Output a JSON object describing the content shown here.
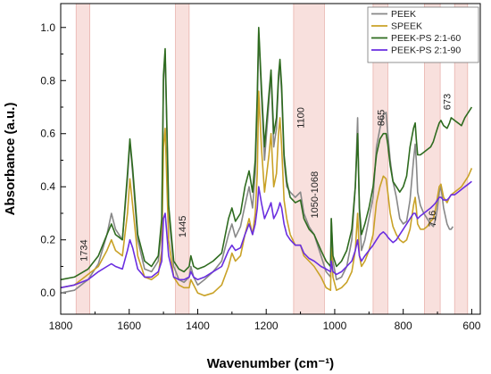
{
  "chart_data": {
    "type": "line",
    "xlabel": "Wavenumber (cm⁻¹)",
    "ylabel": "Absorbance (a.u.)",
    "xlim": [
      1800,
      575
    ],
    "ylim": [
      -0.08,
      1.09
    ],
    "x_ticks": [
      "1800",
      "1600",
      "1400",
      "1200",
      "1000",
      "800",
      "600"
    ],
    "x_tick_values": [
      1800,
      1600,
      1400,
      1200,
      1000,
      800,
      600
    ],
    "y_ticks": [
      "0.0",
      "0.2",
      "0.4",
      "0.6",
      "0.8",
      "1.0"
    ],
    "y_tick_values": [
      0.0,
      0.2,
      0.4,
      0.6,
      0.8,
      1.0
    ],
    "legend_position": "top-right",
    "bands": [
      {
        "from": 1755,
        "to": 1715
      },
      {
        "from": 1465,
        "to": 1425
      },
      {
        "from": 1120,
        "to": 1030
      },
      {
        "from": 888,
        "to": 845
      },
      {
        "from": 738,
        "to": 692
      },
      {
        "from": 650,
        "to": 612
      }
    ],
    "annotations": [
      {
        "text": "1734",
        "x": 1734,
        "y": 0.16
      },
      {
        "text": "1445",
        "x": 1445,
        "y": 0.25
      },
      {
        "text": "1100",
        "x": 1100,
        "y": 0.66
      },
      {
        "text": "1050-1068",
        "x": 1060,
        "y": 0.37
      },
      {
        "text": "865",
        "x": 865,
        "y": 0.66
      },
      {
        "text": "716",
        "x": 716,
        "y": 0.28
      },
      {
        "text": "673",
        "x": 673,
        "y": 0.72
      }
    ],
    "series": [
      {
        "name": "PEEK",
        "color": "#888888",
        "x": [
          1800,
          1760,
          1720,
          1690,
          1665,
          1652,
          1640,
          1620,
          1605,
          1598,
          1590,
          1575,
          1555,
          1535,
          1515,
          1505,
          1500,
          1495,
          1485,
          1470,
          1455,
          1440,
          1425,
          1420,
          1412,
          1400,
          1380,
          1355,
          1330,
          1310,
          1300,
          1290,
          1275,
          1262,
          1250,
          1240,
          1232,
          1226,
          1222,
          1214,
          1205,
          1192,
          1186,
          1178,
          1170,
          1164,
          1160,
          1155,
          1148,
          1140,
          1130,
          1115,
          1100,
          1090,
          1075,
          1060,
          1040,
          1025,
          1012,
          1010,
          1005,
          995,
          980,
          965,
          950,
          940,
          933,
          928,
          922,
          912,
          900,
          888,
          878,
          868,
          858,
          850,
          845,
          838,
          830,
          820,
          810,
          800,
          790,
          780,
          770,
          765,
          762,
          758,
          750,
          740,
          730,
          720,
          712,
          705,
          700,
          695,
          690,
          682,
          672,
          665,
          660,
          655
        ],
        "y": [
          0.0,
          0.01,
          0.05,
          0.11,
          0.22,
          0.3,
          0.24,
          0.2,
          0.43,
          0.57,
          0.45,
          0.2,
          0.09,
          0.08,
          0.12,
          0.25,
          0.8,
          0.9,
          0.3,
          0.1,
          0.05,
          0.04,
          0.06,
          0.1,
          0.06,
          0.03,
          0.05,
          0.08,
          0.12,
          0.22,
          0.26,
          0.21,
          0.25,
          0.33,
          0.4,
          0.32,
          0.45,
          0.7,
          0.98,
          0.75,
          0.5,
          0.72,
          0.83,
          0.55,
          0.62,
          0.8,
          0.86,
          0.75,
          0.5,
          0.4,
          0.38,
          0.36,
          0.38,
          0.3,
          0.25,
          0.22,
          0.14,
          0.08,
          0.06,
          0.28,
          0.12,
          0.05,
          0.06,
          0.1,
          0.2,
          0.4,
          0.66,
          0.3,
          0.16,
          0.2,
          0.28,
          0.36,
          0.55,
          0.62,
          0.67,
          0.68,
          0.6,
          0.5,
          0.42,
          0.36,
          0.28,
          0.26,
          0.27,
          0.35,
          0.5,
          0.56,
          0.5,
          0.38,
          0.33,
          0.3,
          0.28,
          0.26,
          0.25,
          0.28,
          0.32,
          0.38,
          0.4,
          0.32,
          0.26,
          0.24,
          0.24,
          0.25
        ]
      },
      {
        "name": "SPEEK",
        "color": "#c9a227",
        "x": [
          1800,
          1760,
          1720,
          1690,
          1665,
          1652,
          1640,
          1620,
          1605,
          1598,
          1590,
          1575,
          1555,
          1535,
          1515,
          1505,
          1500,
          1495,
          1485,
          1470,
          1455,
          1440,
          1425,
          1420,
          1412,
          1400,
          1380,
          1355,
          1330,
          1310,
          1300,
          1290,
          1275,
          1262,
          1250,
          1240,
          1232,
          1226,
          1222,
          1214,
          1205,
          1192,
          1186,
          1178,
          1170,
          1164,
          1160,
          1155,
          1148,
          1140,
          1130,
          1115,
          1100,
          1090,
          1075,
          1060,
          1040,
          1025,
          1012,
          1010,
          1005,
          995,
          980,
          965,
          950,
          940,
          933,
          928,
          922,
          912,
          900,
          888,
          878,
          868,
          858,
          850,
          845,
          838,
          830,
          820,
          810,
          800,
          790,
          780,
          770,
          765,
          762,
          758,
          750,
          740,
          730,
          720,
          712,
          705,
          700,
          695,
          690,
          682,
          672,
          665,
          660,
          650,
          640,
          630,
          620,
          610,
          600
        ],
        "y": [
          0.02,
          0.03,
          0.07,
          0.1,
          0.16,
          0.2,
          0.16,
          0.14,
          0.3,
          0.43,
          0.33,
          0.14,
          0.06,
          0.05,
          0.07,
          0.16,
          0.55,
          0.62,
          0.2,
          0.06,
          0.03,
          0.02,
          0.02,
          0.05,
          0.03,
          0.0,
          -0.01,
          0.0,
          0.03,
          0.1,
          0.15,
          0.12,
          0.14,
          0.22,
          0.28,
          0.22,
          0.3,
          0.45,
          0.76,
          0.55,
          0.38,
          0.52,
          0.6,
          0.4,
          0.45,
          0.6,
          0.66,
          0.55,
          0.35,
          0.28,
          0.22,
          0.18,
          0.18,
          0.14,
          0.12,
          0.1,
          0.06,
          0.02,
          0.01,
          0.17,
          0.06,
          0.01,
          0.02,
          0.04,
          0.08,
          0.16,
          0.3,
          0.14,
          0.1,
          0.12,
          0.16,
          0.22,
          0.34,
          0.4,
          0.44,
          0.43,
          0.38,
          0.3,
          0.25,
          0.22,
          0.2,
          0.19,
          0.2,
          0.24,
          0.33,
          0.36,
          0.32,
          0.26,
          0.24,
          0.24,
          0.25,
          0.27,
          0.28,
          0.32,
          0.36,
          0.4,
          0.41,
          0.36,
          0.34,
          0.36,
          0.37,
          0.38,
          0.39,
          0.4,
          0.42,
          0.44,
          0.47
        ]
      },
      {
        "name": "PEEK-PS 2:1-60",
        "color": "#2e6b1f",
        "x": [
          1800,
          1760,
          1720,
          1690,
          1665,
          1652,
          1640,
          1620,
          1605,
          1598,
          1590,
          1575,
          1555,
          1535,
          1515,
          1505,
          1500,
          1495,
          1485,
          1470,
          1455,
          1440,
          1425,
          1420,
          1412,
          1400,
          1380,
          1355,
          1330,
          1310,
          1300,
          1290,
          1275,
          1262,
          1250,
          1240,
          1232,
          1226,
          1222,
          1214,
          1205,
          1192,
          1186,
          1178,
          1170,
          1164,
          1160,
          1155,
          1148,
          1140,
          1130,
          1115,
          1100,
          1090,
          1075,
          1060,
          1040,
          1025,
          1012,
          1010,
          1005,
          995,
          980,
          965,
          950,
          940,
          933,
          928,
          922,
          912,
          900,
          888,
          878,
          868,
          858,
          850,
          845,
          838,
          830,
          820,
          810,
          800,
          790,
          780,
          770,
          765,
          762,
          758,
          750,
          740,
          730,
          720,
          712,
          705,
          700,
          695,
          690,
          682,
          672,
          665,
          660,
          650,
          640,
          630,
          620,
          610,
          600
        ],
        "y": [
          0.05,
          0.06,
          0.09,
          0.14,
          0.22,
          0.26,
          0.22,
          0.2,
          0.45,
          0.58,
          0.47,
          0.22,
          0.12,
          0.1,
          0.14,
          0.28,
          0.82,
          0.92,
          0.33,
          0.12,
          0.09,
          0.08,
          0.1,
          0.14,
          0.1,
          0.09,
          0.1,
          0.12,
          0.15,
          0.28,
          0.32,
          0.27,
          0.3,
          0.4,
          0.46,
          0.38,
          0.5,
          0.75,
          1.0,
          0.78,
          0.55,
          0.75,
          0.84,
          0.6,
          0.66,
          0.82,
          0.88,
          0.78,
          0.52,
          0.42,
          0.36,
          0.34,
          0.35,
          0.28,
          0.24,
          0.22,
          0.16,
          0.12,
          0.1,
          0.28,
          0.14,
          0.1,
          0.12,
          0.16,
          0.24,
          0.4,
          0.6,
          0.32,
          0.22,
          0.26,
          0.32,
          0.4,
          0.52,
          0.58,
          0.6,
          0.6,
          0.56,
          0.48,
          0.42,
          0.4,
          0.38,
          0.4,
          0.44,
          0.55,
          0.62,
          0.64,
          0.58,
          0.52,
          0.52,
          0.53,
          0.54,
          0.55,
          0.57,
          0.6,
          0.62,
          0.64,
          0.65,
          0.63,
          0.62,
          0.64,
          0.66,
          0.65,
          0.64,
          0.63,
          0.66,
          0.68,
          0.7
        ]
      },
      {
        "name": "PEEK-PS 2:1-90",
        "color": "#6a2ee0",
        "x": [
          1800,
          1760,
          1720,
          1690,
          1665,
          1652,
          1640,
          1620,
          1605,
          1598,
          1590,
          1575,
          1555,
          1535,
          1515,
          1505,
          1500,
          1495,
          1485,
          1470,
          1455,
          1440,
          1425,
          1420,
          1412,
          1400,
          1380,
          1355,
          1330,
          1310,
          1300,
          1290,
          1275,
          1262,
          1250,
          1240,
          1232,
          1226,
          1222,
          1214,
          1205,
          1192,
          1186,
          1178,
          1170,
          1164,
          1160,
          1155,
          1148,
          1140,
          1130,
          1115,
          1100,
          1090,
          1075,
          1060,
          1040,
          1025,
          1012,
          1010,
          1005,
          995,
          980,
          965,
          950,
          940,
          933,
          928,
          922,
          912,
          900,
          888,
          878,
          868,
          858,
          850,
          845,
          838,
          830,
          820,
          810,
          800,
          790,
          780,
          770,
          765,
          762,
          758,
          750,
          740,
          730,
          720,
          712,
          705,
          700,
          695,
          690,
          682,
          672,
          665,
          660,
          650,
          640,
          630,
          620,
          610,
          600
        ],
        "y": [
          0.02,
          0.03,
          0.05,
          0.08,
          0.1,
          0.11,
          0.1,
          0.09,
          0.16,
          0.2,
          0.17,
          0.09,
          0.06,
          0.06,
          0.08,
          0.12,
          0.28,
          0.3,
          0.14,
          0.06,
          0.05,
          0.05,
          0.06,
          0.08,
          0.06,
          0.05,
          0.06,
          0.08,
          0.1,
          0.16,
          0.18,
          0.16,
          0.17,
          0.22,
          0.26,
          0.22,
          0.26,
          0.32,
          0.4,
          0.34,
          0.28,
          0.32,
          0.34,
          0.28,
          0.3,
          0.32,
          0.34,
          0.32,
          0.26,
          0.22,
          0.2,
          0.18,
          0.18,
          0.15,
          0.13,
          0.12,
          0.1,
          0.09,
          0.08,
          0.12,
          0.08,
          0.07,
          0.08,
          0.1,
          0.12,
          0.16,
          0.2,
          0.14,
          0.12,
          0.14,
          0.16,
          0.18,
          0.2,
          0.22,
          0.23,
          0.22,
          0.21,
          0.2,
          0.19,
          0.2,
          0.22,
          0.24,
          0.26,
          0.28,
          0.3,
          0.3,
          0.29,
          0.28,
          0.29,
          0.3,
          0.31,
          0.32,
          0.33,
          0.34,
          0.35,
          0.36,
          0.36,
          0.35,
          0.35,
          0.36,
          0.37,
          0.37,
          0.38,
          0.39,
          0.4,
          0.41,
          0.42
        ]
      }
    ]
  }
}
